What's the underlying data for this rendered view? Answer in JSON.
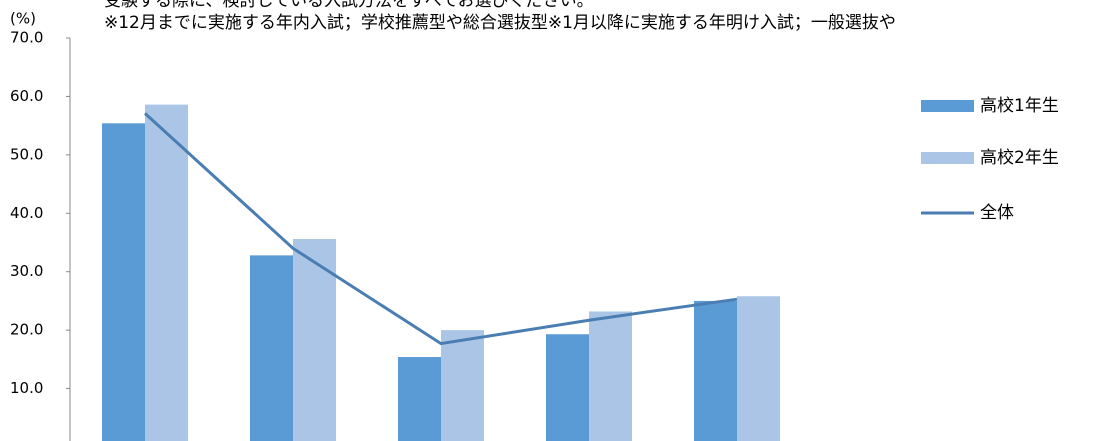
{
  "chart_data": {
    "type": "bar",
    "title": "受験する際に、検討している入試方法をすべてお選びください。",
    "subtitle": "※12月までに実施する年内入試；学校推薦型や総合選抜型※1月以降に実施する年明け入試；一般選抜や",
    "ylabel": "(%)",
    "categories": [
      null,
      null,
      null,
      null,
      null
    ],
    "series": [
      {
        "name": "高校1年生",
        "type": "bar",
        "color": "#5b9bd5",
        "values": [
          55.4,
          32.8,
          15.4,
          19.3,
          25.0
        ]
      },
      {
        "name": "高校2年生",
        "type": "bar",
        "color": "#abc5e7",
        "values": [
          58.6,
          35.6,
          20.0,
          23.2,
          25.8
        ]
      },
      {
        "name": "全体",
        "type": "line",
        "color": "#4a7eb3",
        "values": [
          57.1,
          34.0,
          17.7,
          21.7,
          25.3
        ]
      }
    ],
    "ylim": [
      0,
      70
    ],
    "yticks": [
      {
        "value": 10,
        "label": "10.0"
      },
      {
        "value": 20,
        "label": "20.0"
      },
      {
        "value": 30,
        "label": "30.0"
      },
      {
        "value": 40,
        "label": "40.0"
      },
      {
        "value": 50,
        "label": "50.0"
      },
      {
        "value": 60,
        "label": "60.0"
      },
      {
        "value": 70,
        "label": "70.0"
      }
    ],
    "grid": false
  }
}
